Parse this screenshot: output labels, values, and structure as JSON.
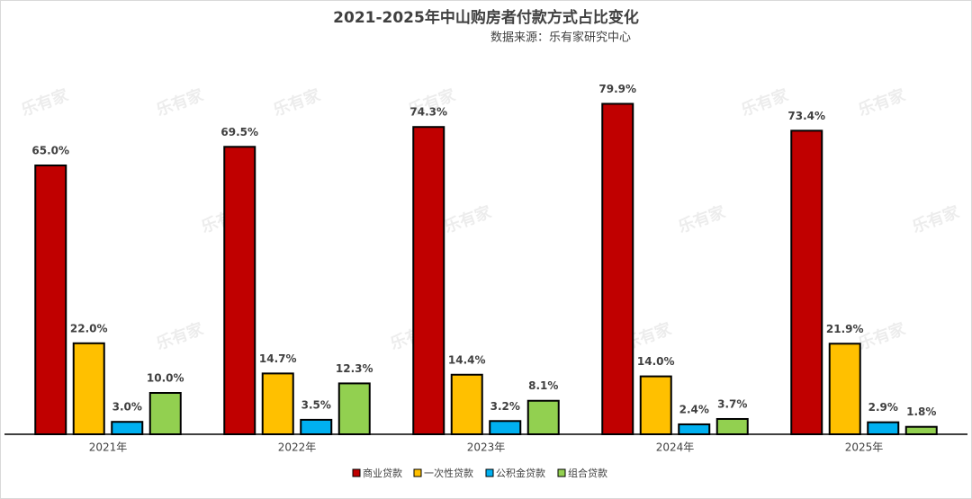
{
  "chart_data": {
    "type": "bar",
    "title": "2021-2025年中山购房者付款方式占比变化",
    "subtitle": "数据来源：乐有家研究中心",
    "watermark": "乐有家",
    "categories": [
      "2021年",
      "2022年",
      "2023年",
      "2024年",
      "2025年"
    ],
    "series": [
      {
        "name": "商业贷款",
        "color": "#c00000",
        "values": [
          65.0,
          69.5,
          74.3,
          79.9,
          73.4
        ],
        "value_labels": [
          "65.0%",
          "69.5%",
          "74.3%",
          "79.9%",
          "73.4%"
        ]
      },
      {
        "name": "一次性贷款",
        "color": "#ffc000",
        "values": [
          22.0,
          14.7,
          14.4,
          14.0,
          21.9
        ],
        "value_labels": [
          "22.0%",
          "14.7%",
          "14.4%",
          "14.0%",
          "21.9%"
        ]
      },
      {
        "name": "公积金贷款",
        "color": "#00b0f0",
        "values": [
          3.0,
          3.5,
          3.2,
          2.4,
          2.9
        ],
        "value_labels": [
          "3.0%",
          "3.5%",
          "3.2%",
          "2.4%",
          "2.9%"
        ]
      },
      {
        "name": "组合贷款",
        "color": "#92d050",
        "values": [
          10.0,
          12.3,
          8.1,
          3.7,
          1.8
        ],
        "value_labels": [
          "10.0%",
          "12.3%",
          "8.1%",
          "3.7%",
          "1.8%"
        ]
      }
    ],
    "ylim": [
      0,
      90
    ],
    "legend": "bottom"
  }
}
